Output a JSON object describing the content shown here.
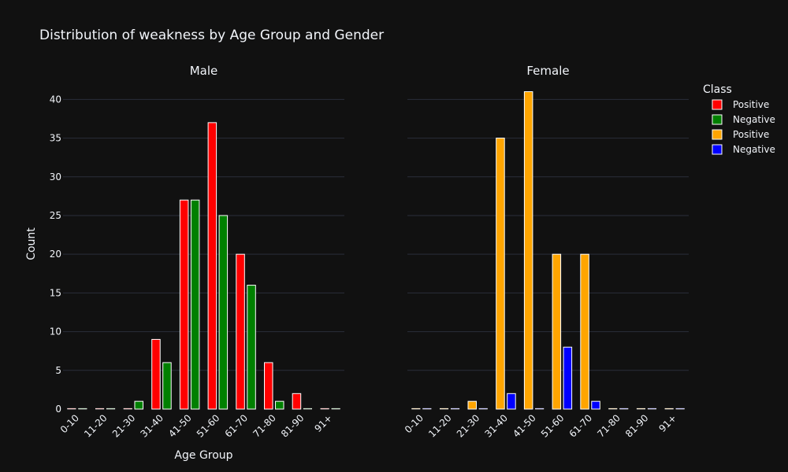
{
  "chart_data": {
    "type": "bar",
    "title": "Distribution of weakness by Age Group and Gender",
    "xlabel": "Age Group",
    "ylabel": "Count",
    "ylim": [
      0,
      44
    ],
    "yticks": [
      0,
      5,
      10,
      15,
      20,
      25,
      30,
      35,
      40
    ],
    "categories": [
      "0-10",
      "11-20",
      "21-30",
      "31-40",
      "41-50",
      "51-60",
      "61-70",
      "71-80",
      "81-90",
      "91+"
    ],
    "grid": true,
    "legend_title": "Class",
    "legend_position": "top-right",
    "panels": [
      {
        "title": "Male",
        "series": [
          {
            "name": "Positive",
            "color": "#ff0000",
            "values": [
              0,
              0,
              0,
              9,
              27,
              37,
              20,
              6,
              2,
              0
            ]
          },
          {
            "name": "Negative",
            "color": "#008000",
            "values": [
              0,
              0,
              1,
              6,
              27,
              25,
              16,
              1,
              0,
              0
            ]
          }
        ]
      },
      {
        "title": "Female",
        "series": [
          {
            "name": "Positive",
            "color": "#ffa500",
            "values": [
              0,
              0,
              1,
              35,
              41,
              20,
              20,
              0,
              0,
              0
            ]
          },
          {
            "name": "Negative",
            "color": "#0000ff",
            "values": [
              0,
              0,
              0,
              2,
              0,
              8,
              1,
              0,
              0,
              0
            ]
          }
        ]
      }
    ]
  }
}
